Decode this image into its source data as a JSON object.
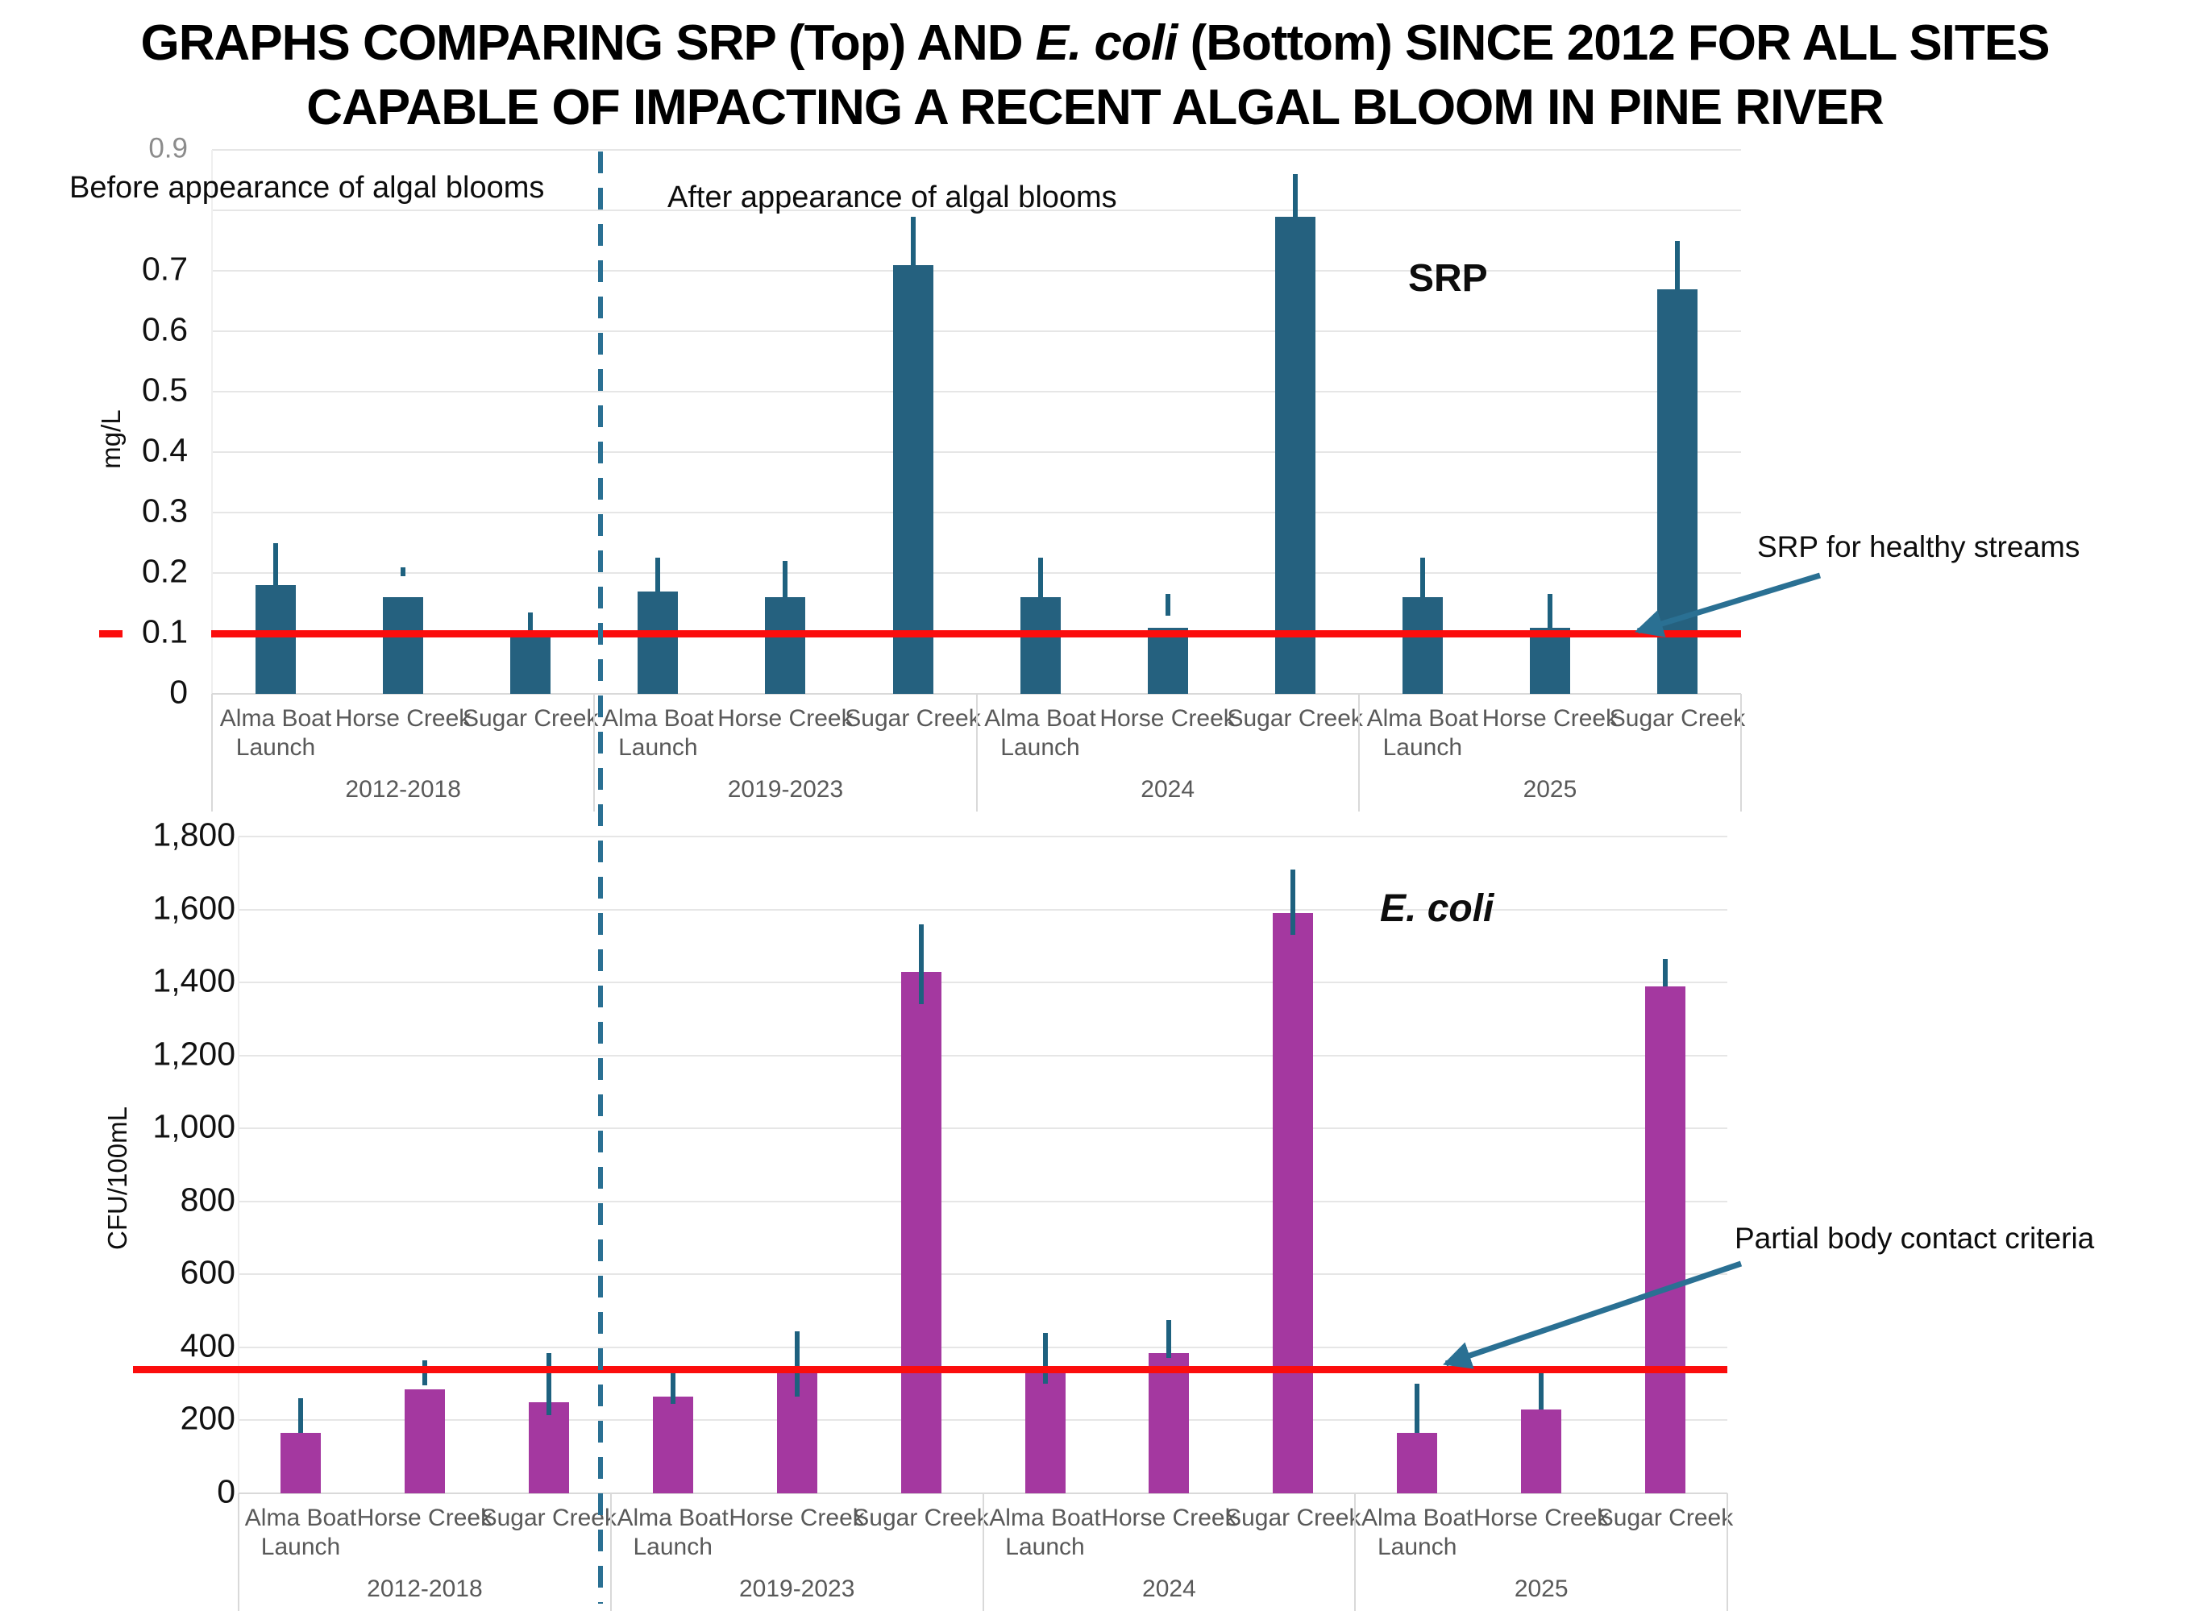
{
  "title": {
    "line1_prefix": "GRAPHS COMPARING SRP (Top) AND ",
    "line1_italic": "E. coli",
    "line1_suffix": " (Bottom) SINCE 2012 FOR ALL SITES",
    "line2": "CAPABLE OF IMPACTING A RECENT ALGAL BLOOM IN PINE RIVER"
  },
  "annotations": {
    "before": "Before appearance of algal blooms",
    "after": "After appearance of algal blooms"
  },
  "colors": {
    "srp_bar": "#25617F",
    "ecoli_bar": "#A438A0",
    "error_bar": "#1E617F",
    "threshold": "#FB0D0D",
    "divider": "#2A7093",
    "grid": "#E6E6E6",
    "band_border": "#D9D9D9",
    "tick_text": "#111111",
    "muted_tick_text": "#8C8C8C",
    "site_text": "#595959"
  },
  "chart_data": [
    {
      "type": "bar",
      "title": "SRP",
      "ylabel": "mg/L",
      "ylim": [
        0,
        0.9
      ],
      "grid": true,
      "legend": "none",
      "sites": [
        "Alma Boat Launch",
        "Horse Creek",
        "Sugar Creek"
      ],
      "yticks": [
        {
          "value": 0,
          "label": "0"
        },
        {
          "value": 0.1,
          "label": "0.1"
        },
        {
          "value": 0.2,
          "label": "0.2"
        },
        {
          "value": 0.3,
          "label": "0.3"
        },
        {
          "value": 0.4,
          "label": "0.4"
        },
        {
          "value": 0.5,
          "label": "0.5"
        },
        {
          "value": 0.6,
          "label": "0.6"
        },
        {
          "value": 0.7,
          "label": "0.7"
        },
        {
          "value": 0.8,
          "label": ""
        },
        {
          "value": 0.9,
          "label": "0.9",
          "muted": true
        }
      ],
      "groups": [
        {
          "label": "2012-2018",
          "values": [
            0.18,
            0.16,
            0.1
          ],
          "error_low": [
            0.18,
            0.195,
            0.1
          ],
          "error_high": [
            0.25,
            0.21,
            0.135
          ]
        },
        {
          "label": "2019-2023",
          "values": [
            0.17,
            0.16,
            0.71
          ],
          "error_low": [
            0.17,
            0.16,
            0.71
          ],
          "error_high": [
            0.225,
            0.22,
            0.79
          ]
        },
        {
          "label": "2024",
          "values": [
            0.16,
            0.11,
            0.79
          ],
          "error_low": [
            0.16,
            0.13,
            0.79
          ],
          "error_high": [
            0.225,
            0.165,
            0.86
          ]
        },
        {
          "label": "2025",
          "values": [
            0.16,
            0.11,
            0.67
          ],
          "error_low": [
            0.16,
            0.11,
            0.67
          ],
          "error_high": [
            0.225,
            0.165,
            0.75
          ]
        }
      ],
      "threshold": {
        "value": 0.1,
        "label": "SRP for healthy streams"
      }
    },
    {
      "type": "bar",
      "title": "E. coli",
      "ylabel": "CFU/100mL",
      "ylim": [
        0,
        1800
      ],
      "grid": true,
      "legend": "none",
      "sites": [
        "Alma Boat Launch",
        "Horse Creek",
        "Sugar Creek"
      ],
      "yticks": [
        {
          "value": 0,
          "label": "0"
        },
        {
          "value": 200,
          "label": "200"
        },
        {
          "value": 400,
          "label": "400"
        },
        {
          "value": 600,
          "label": "600"
        },
        {
          "value": 800,
          "label": "800"
        },
        {
          "value": 1000,
          "label": "1,000"
        },
        {
          "value": 1200,
          "label": "1,200"
        },
        {
          "value": 1400,
          "label": "1,400"
        },
        {
          "value": 1600,
          "label": "1,600"
        },
        {
          "value": 1800,
          "label": "1,800"
        }
      ],
      "groups": [
        {
          "label": "2012-2018",
          "values": [
            165,
            285,
            250
          ],
          "error_low": [
            165,
            295,
            215
          ],
          "error_high": [
            260,
            365,
            385
          ]
        },
        {
          "label": "2019-2023",
          "values": [
            265,
            335,
            1430
          ],
          "error_low": [
            245,
            265,
            1340
          ],
          "error_high": [
            350,
            445,
            1560
          ]
        },
        {
          "label": "2024",
          "values": [
            330,
            385,
            1590
          ],
          "error_low": [
            300,
            370,
            1530
          ],
          "error_high": [
            440,
            475,
            1710
          ]
        },
        {
          "label": "2025",
          "values": [
            165,
            230,
            1390
          ],
          "error_low": [
            165,
            230,
            1390
          ],
          "error_high": [
            300,
            330,
            1465
          ]
        }
      ],
      "threshold": {
        "value": 340,
        "label": "Partial body contact criteria"
      }
    }
  ]
}
